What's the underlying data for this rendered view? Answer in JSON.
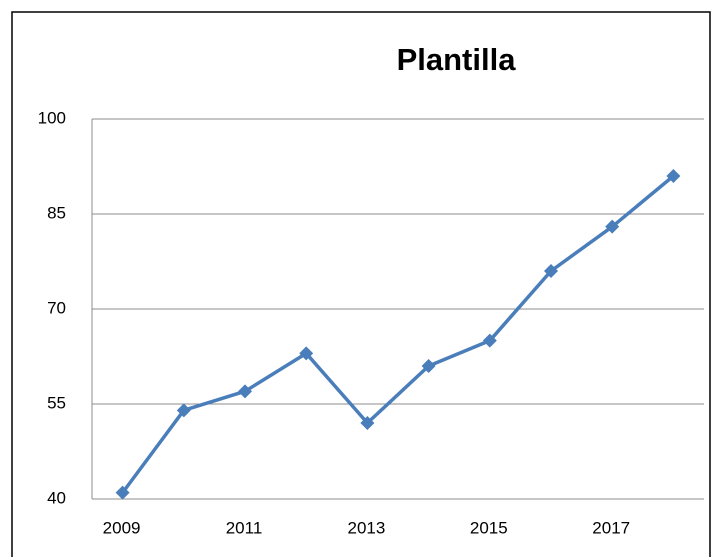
{
  "chart_data": {
    "type": "line",
    "title": "Plantilla",
    "categories": [
      "2009",
      null,
      "2011",
      null,
      "2013",
      null,
      "2015",
      null,
      "2017",
      null
    ],
    "values": [
      41,
      54,
      57,
      63,
      52,
      61,
      65,
      76,
      83,
      91
    ],
    "color": "#4a7ebb",
    "ylim": [
      40,
      100
    ],
    "yticks": [
      40,
      55,
      70,
      85,
      100
    ],
    "grid": true
  }
}
